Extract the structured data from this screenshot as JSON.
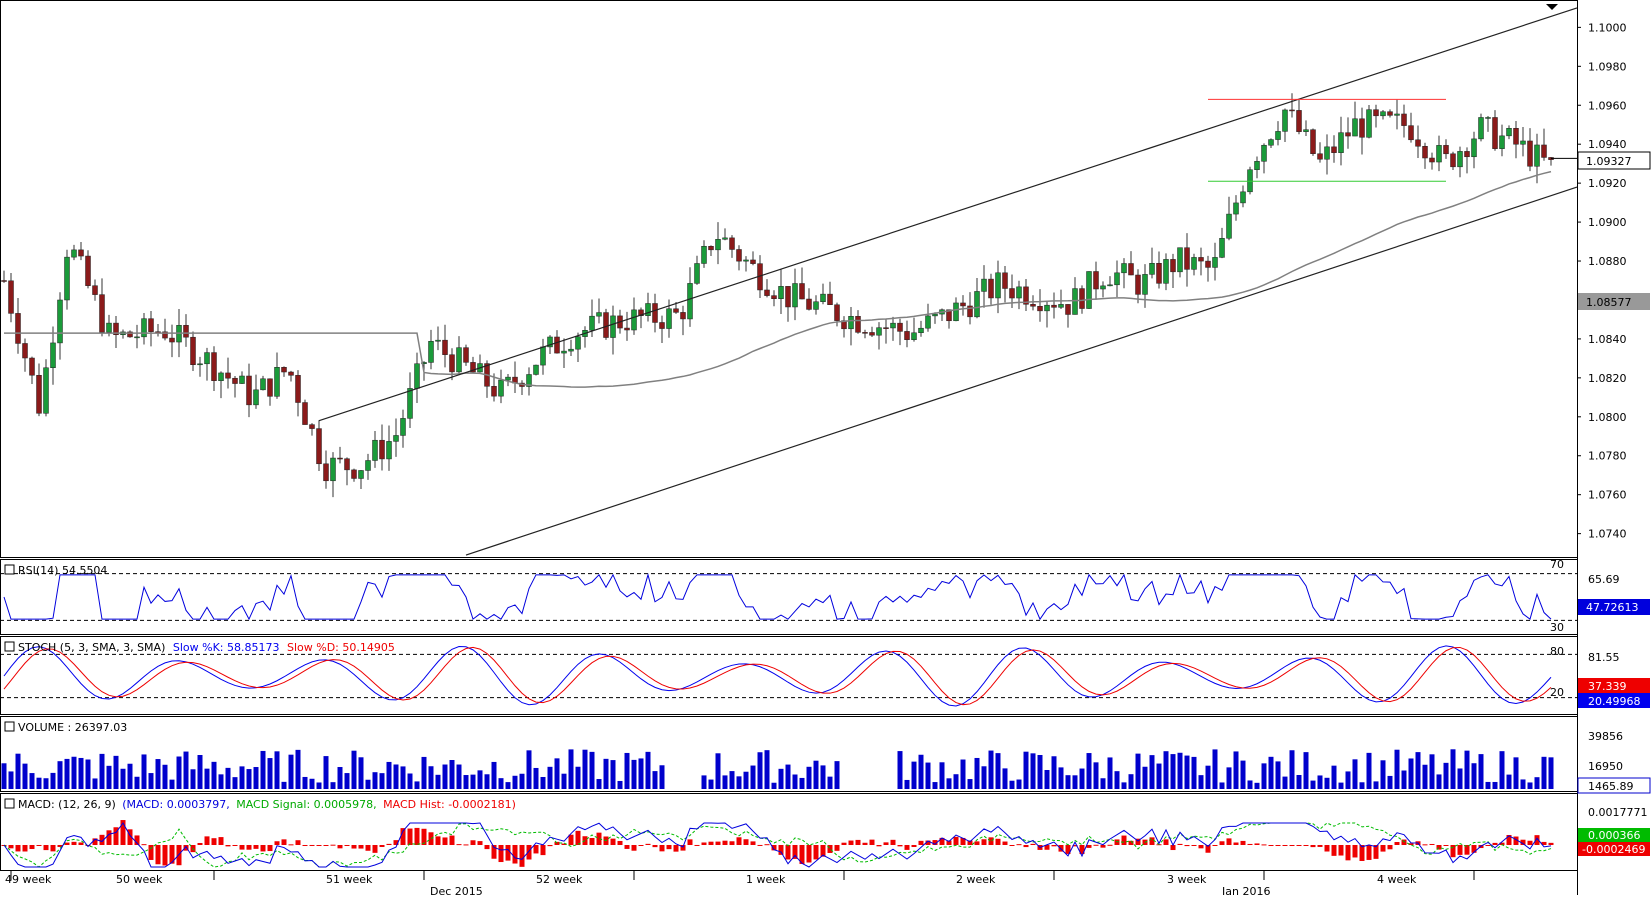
{
  "chart_data": {
    "type": "candlestick",
    "symbol_pair": "EUR/USD",
    "price_panel": {
      "ylim": [
        1.0728,
        1.1012
      ],
      "y_ticks": [
        "1.1000",
        "1.0980",
        "1.0960",
        "1.0940",
        "1.0920",
        "1.0900",
        "1.0880",
        "1.0860",
        "1.0840",
        "1.0820",
        "1.0800",
        "1.0780",
        "1.0760",
        "1.0740"
      ],
      "last_price_label": "1.09327",
      "last_price": 1.09327,
      "ma_label": "1.08577",
      "ma_value": 1.08577,
      "resistance": 1.0963,
      "support": 1.0921,
      "bar_count": 222,
      "ohlc_anchors": [
        [
          0,
          1.087
        ],
        [
          10,
          1.0805
        ],
        [
          18,
          1.089
        ],
        [
          30,
          1.084
        ],
        [
          45,
          1.0845
        ],
        [
          58,
          1.0828
        ],
        [
          70,
          1.081
        ],
        [
          80,
          1.0825
        ],
        [
          90,
          1.0775
        ],
        [
          100,
          1.0775
        ],
        [
          110,
          1.079
        ],
        [
          120,
          1.0838
        ],
        [
          130,
          1.0825
        ],
        [
          140,
          1.0812
        ],
        [
          150,
          1.083
        ],
        [
          160,
          1.0843
        ],
        [
          175,
          1.085
        ],
        [
          190,
          1.0852
        ],
        [
          200,
          1.0895
        ],
        [
          210,
          1.0877
        ],
        [
          220,
          1.0862
        ],
        [
          240,
          1.085
        ],
        [
          255,
          1.0843
        ],
        [
          265,
          1.0852
        ],
        [
          280,
          1.0868
        ],
        [
          300,
          1.0858
        ],
        [
          310,
          1.0875
        ],
        [
          320,
          1.0868
        ],
        [
          330,
          1.088
        ],
        [
          340,
          1.0875
        ],
        [
          350,
          1.093
        ],
        [
          360,
          1.0958
        ],
        [
          370,
          1.093
        ],
        [
          380,
          1.095
        ],
        [
          395,
          1.095
        ],
        [
          405,
          1.093
        ],
        [
          415,
          1.0948
        ],
        [
          425,
          1.094
        ],
        [
          435,
          1.0928
        ]
      ]
    },
    "rsi": {
      "label": "RSI(14) 54.5504",
      "value_label": "47.72613",
      "levels": [
        "70",
        "30"
      ],
      "tick": "65.69",
      "ylim": [
        20,
        80
      ]
    },
    "stoch": {
      "label": "STOCH (5, 3, SMA, 3, SMA)",
      "k_label": "Slow %K: 58.85173",
      "d_label": "Slow %D: 50.14905",
      "levels": [
        "80",
        "20"
      ],
      "tick": "81.55",
      "k_value": "20.49968",
      "d_value": "37.339"
    },
    "volume": {
      "label": "VOLUME : 26397.03",
      "ticks": [
        "39856",
        "16950"
      ],
      "value_label": "1465.89"
    },
    "macd": {
      "label": "MACD: (12, 26, 9)",
      "macd_label": "(MACD: 0.0003797,",
      "signal_label": "MACD Signal: 0.0005978,",
      "hist_label": "MACD Hist: -0.0002181)",
      "tick": "0.0017771",
      "signal_value": "0.000366",
      "hist_value": "-0.0002469"
    },
    "x_week_labels": [
      "49 week",
      "50 week",
      "51 week",
      "52 week",
      "1 week",
      "2 week",
      "3 week",
      "4 week"
    ],
    "x_month_labels": [
      "Dec 2015",
      "Jan 2016"
    ]
  },
  "colors": {
    "bull": "#1a9b3a",
    "bear": "#8b1a1a",
    "channel": "#222222",
    "ma": "#808080",
    "resistance": "#ff3333",
    "support": "#33cc33",
    "rsi_line": "#0000dd",
    "stoch_k": "#0000ee",
    "stoch_d": "#ee0000",
    "volume": "#0000cc",
    "macd_line": "#0000dd",
    "macd_signal": "#00bb00",
    "macd_hist": "#ee0000"
  }
}
